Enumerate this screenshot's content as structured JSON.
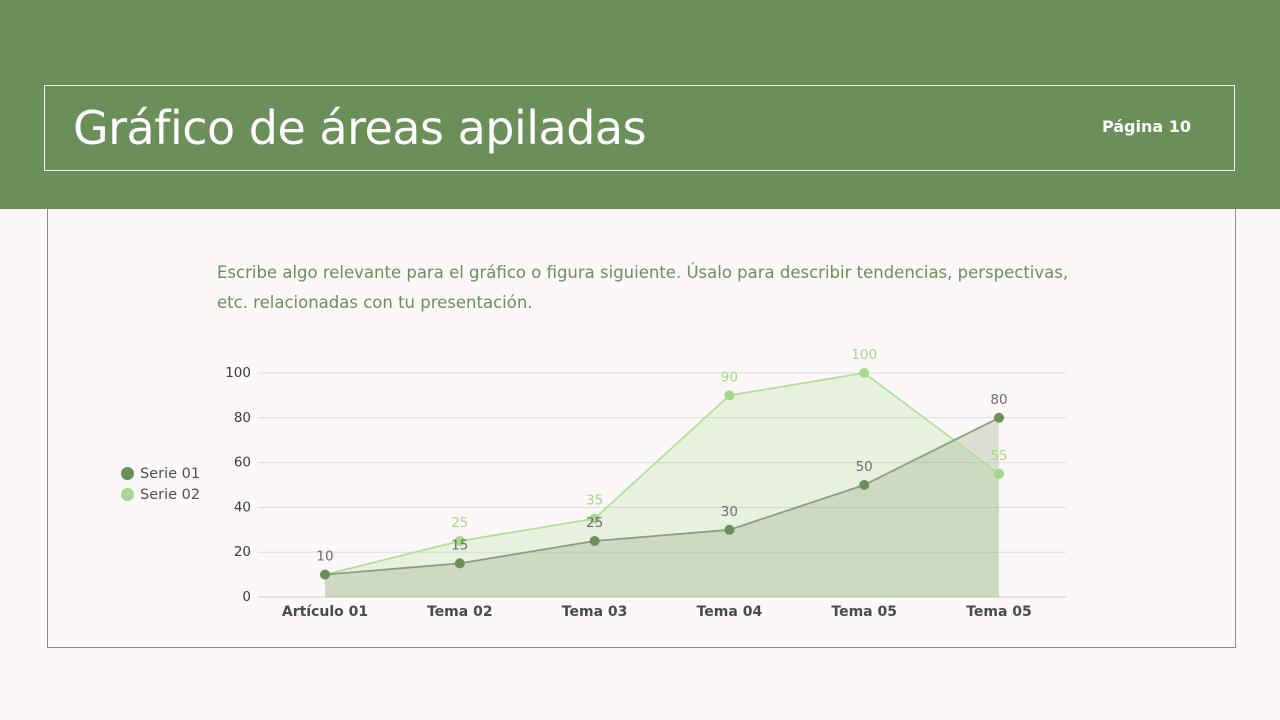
{
  "header": {
    "title": "Gráfico de áreas apiladas",
    "page_label": "Página 10"
  },
  "description": "Escribe algo relevante para el gráfico o figura siguiente. Úsalo para describir tendencias, perspectivas, etc. relacionadas con tu presentación.",
  "colors": {
    "header_band": "#6b8f58",
    "series_01": "#6b8f58",
    "series_02": "#a3d98a",
    "background": "#fcf8f9"
  },
  "chart_data": {
    "type": "area",
    "categories": [
      "Artículo 01",
      "Tema 02",
      "Tema 03",
      "Tema 04",
      "Tema 05",
      "Tema 05"
    ],
    "series": [
      {
        "name": "Serie 01",
        "values": [
          10,
          15,
          25,
          30,
          50,
          80
        ],
        "color": "#6b8f58"
      },
      {
        "name": "Serie 02",
        "values": [
          10,
          25,
          35,
          90,
          100,
          55
        ],
        "color": "#a3d98a"
      }
    ],
    "ylim": [
      0,
      100
    ],
    "yticks": [
      0,
      20,
      40,
      60,
      80,
      100
    ],
    "grid": true,
    "legend_position": "left",
    "data_labels": true
  }
}
